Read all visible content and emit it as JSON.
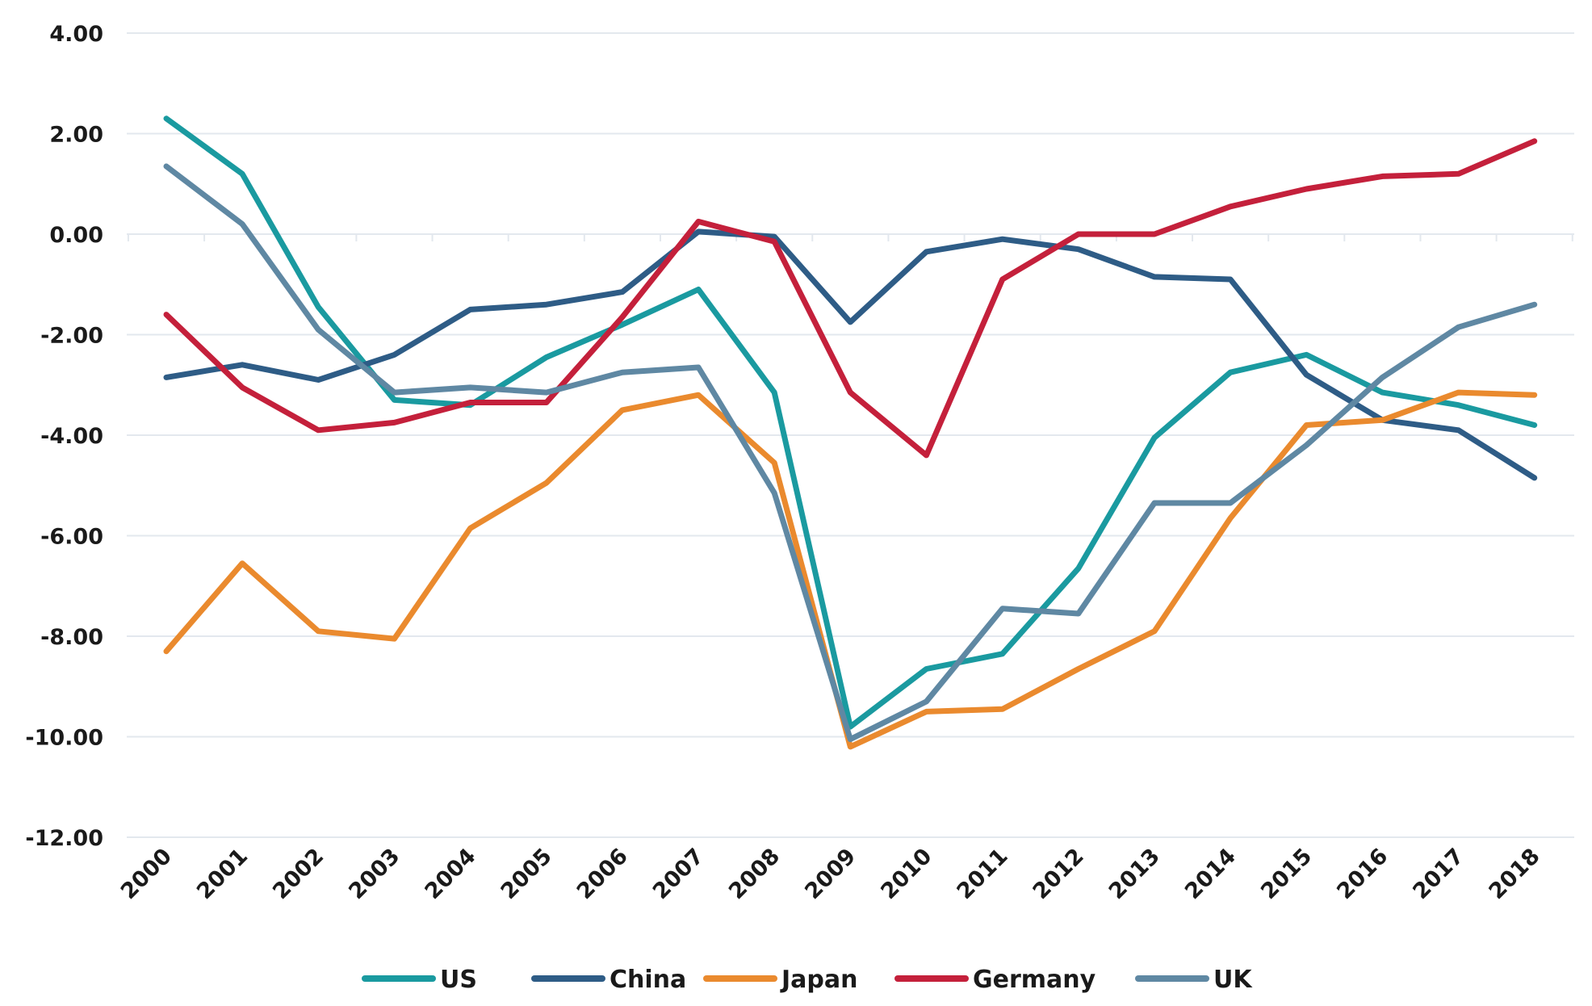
{
  "chart_data": {
    "type": "line",
    "title": "",
    "xlabel": "",
    "ylabel": "",
    "ylim": [
      -12,
      4
    ],
    "y_ticks": [
      4,
      2,
      0,
      -2,
      -4,
      -6,
      -8,
      -10,
      -12
    ],
    "y_tick_labels": [
      "4.00",
      "2.00",
      "0.00",
      "-2.00",
      "-4.00",
      "-6.00",
      "-8.00",
      "-10.00",
      "-12.00"
    ],
    "grid": true,
    "legend_position": "bottom-center",
    "x": [
      "2000",
      "2001",
      "2002",
      "2003",
      "2004",
      "2005",
      "2006",
      "2007",
      "2008",
      "2009",
      "2010",
      "2011",
      "2012",
      "2013",
      "2014",
      "2015",
      "2016",
      "2017",
      "2018"
    ],
    "series": [
      {
        "name": "US",
        "color": "#1a9aa0",
        "values": [
          2.3,
          1.2,
          -1.45,
          -3.3,
          -3.4,
          -2.45,
          -1.8,
          -1.1,
          -3.15,
          -9.8,
          -8.65,
          -8.35,
          -6.65,
          -4.05,
          -2.75,
          -2.4,
          -3.15,
          -3.4,
          -3.8
        ]
      },
      {
        "name": "China",
        "color": "#2e5c86",
        "values": [
          -2.85,
          -2.6,
          -2.9,
          -2.4,
          -1.5,
          -1.4,
          -1.15,
          0.05,
          -0.05,
          -1.75,
          -0.35,
          -0.1,
          -0.3,
          -0.85,
          -0.9,
          -2.8,
          -3.7,
          -3.9,
          -4.85
        ]
      },
      {
        "name": "Japan",
        "color": "#ea8a2e",
        "values": [
          -8.3,
          -6.55,
          -7.9,
          -8.05,
          -5.85,
          -4.95,
          -3.5,
          -3.2,
          -4.55,
          -10.2,
          -9.5,
          -9.45,
          -8.65,
          -7.9,
          -5.65,
          -3.8,
          -3.7,
          -3.15,
          -3.2
        ]
      },
      {
        "name": "Germany",
        "color": "#c4203b",
        "values": [
          -1.6,
          -3.05,
          -3.9,
          -3.75,
          -3.35,
          -3.35,
          -1.65,
          0.25,
          -0.15,
          -3.15,
          -4.4,
          -0.9,
          0.0,
          0.0,
          0.55,
          0.9,
          1.15,
          1.2,
          1.85
        ]
      },
      {
        "name": "UK",
        "color": "#5f88a3",
        "values": [
          1.35,
          0.2,
          -1.9,
          -3.15,
          -3.05,
          -3.15,
          -2.75,
          -2.65,
          -5.15,
          -10.05,
          -9.3,
          -7.45,
          -7.55,
          -5.35,
          -5.35,
          -4.2,
          -2.85,
          -1.85,
          -1.4
        ]
      }
    ]
  }
}
